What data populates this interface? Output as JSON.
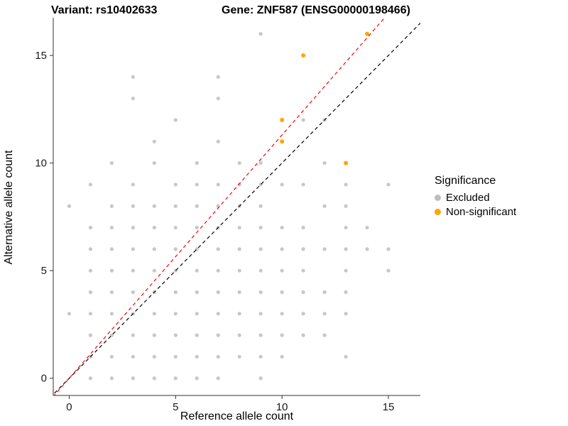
{
  "title_left": "Variant: rs10402633",
  "title_right": "Gene: ZNF587 (ENSG00000198466)",
  "chart_data": {
    "type": "scatter",
    "xlabel": "Reference allele count",
    "ylabel": "Alternative allele count",
    "x_ticks": [
      0,
      5,
      10,
      15
    ],
    "y_ticks": [
      0,
      5,
      10,
      15
    ],
    "xlim": [
      -0.75,
      16.5
    ],
    "ylim": [
      -0.8,
      16.75
    ],
    "grid": false,
    "series": [
      {
        "name": "Excluded",
        "color": "#bdbdbd",
        "radius": 2.6,
        "opacity": 0.85,
        "points": [
          [
            1,
            0
          ],
          [
            2,
            0
          ],
          [
            3,
            0
          ],
          [
            4,
            0
          ],
          [
            5,
            0
          ],
          [
            6,
            0
          ],
          [
            7,
            0
          ],
          [
            9,
            0
          ],
          [
            1,
            1
          ],
          [
            2,
            1
          ],
          [
            3,
            1
          ],
          [
            4,
            1
          ],
          [
            5,
            1
          ],
          [
            6,
            1
          ],
          [
            7,
            1
          ],
          [
            8,
            1
          ],
          [
            9,
            1
          ],
          [
            10,
            1
          ],
          [
            13,
            1
          ],
          [
            1,
            2
          ],
          [
            2,
            2
          ],
          [
            3,
            2
          ],
          [
            4,
            2
          ],
          [
            5,
            2
          ],
          [
            6,
            2
          ],
          [
            7,
            2
          ],
          [
            8,
            2
          ],
          [
            9,
            2
          ],
          [
            10,
            2
          ],
          [
            11,
            2
          ],
          [
            12,
            2
          ],
          [
            0,
            3
          ],
          [
            1,
            3
          ],
          [
            2,
            3
          ],
          [
            3,
            3
          ],
          [
            4,
            3
          ],
          [
            5,
            3
          ],
          [
            6,
            3
          ],
          [
            7,
            3
          ],
          [
            8,
            3
          ],
          [
            9,
            3
          ],
          [
            10,
            3
          ],
          [
            11,
            3
          ],
          [
            12,
            3
          ],
          [
            13,
            3
          ],
          [
            1,
            4
          ],
          [
            2,
            4
          ],
          [
            3,
            4
          ],
          [
            4,
            4
          ],
          [
            5,
            4
          ],
          [
            6,
            4
          ],
          [
            7,
            4
          ],
          [
            8,
            4
          ],
          [
            9,
            4
          ],
          [
            10,
            4
          ],
          [
            11,
            4
          ],
          [
            12,
            4
          ],
          [
            13,
            4
          ],
          [
            1,
            5
          ],
          [
            2,
            5
          ],
          [
            3,
            5
          ],
          [
            4,
            5
          ],
          [
            5,
            5
          ],
          [
            6,
            5
          ],
          [
            7,
            5
          ],
          [
            8,
            5
          ],
          [
            9,
            5
          ],
          [
            10,
            5
          ],
          [
            11,
            5
          ],
          [
            13,
            5
          ],
          [
            15,
            5
          ],
          [
            1,
            6
          ],
          [
            2,
            6
          ],
          [
            3,
            6
          ],
          [
            4,
            6
          ],
          [
            5,
            6
          ],
          [
            6,
            6
          ],
          [
            7,
            6
          ],
          [
            8,
            6
          ],
          [
            9,
            6
          ],
          [
            10,
            6
          ],
          [
            11,
            6
          ],
          [
            12,
            6
          ],
          [
            13,
            6
          ],
          [
            14,
            6
          ],
          [
            15,
            6
          ],
          [
            1,
            7
          ],
          [
            2,
            7
          ],
          [
            3,
            7
          ],
          [
            4,
            7
          ],
          [
            5,
            7
          ],
          [
            6,
            7
          ],
          [
            7,
            7
          ],
          [
            8,
            7
          ],
          [
            9,
            7
          ],
          [
            10,
            7
          ],
          [
            11,
            7
          ],
          [
            13,
            7
          ],
          [
            14,
            7
          ],
          [
            0,
            8
          ],
          [
            2,
            8
          ],
          [
            3,
            8
          ],
          [
            4,
            8
          ],
          [
            5,
            8
          ],
          [
            6,
            8
          ],
          [
            7,
            8
          ],
          [
            8,
            8
          ],
          [
            9,
            8
          ],
          [
            12,
            8
          ],
          [
            13,
            8
          ],
          [
            1,
            9
          ],
          [
            3,
            9
          ],
          [
            5,
            9
          ],
          [
            6,
            9
          ],
          [
            7,
            9
          ],
          [
            8,
            9
          ],
          [
            9,
            9
          ],
          [
            10,
            9
          ],
          [
            11,
            9
          ],
          [
            13,
            9
          ],
          [
            15,
            9
          ],
          [
            2,
            10
          ],
          [
            4,
            10
          ],
          [
            6,
            10
          ],
          [
            8,
            10
          ],
          [
            9,
            10
          ],
          [
            12,
            10
          ],
          [
            4,
            11
          ],
          [
            7,
            11
          ],
          [
            5,
            12
          ],
          [
            11,
            12
          ],
          [
            12,
            12
          ],
          [
            3,
            13
          ],
          [
            7,
            13
          ],
          [
            3,
            14
          ],
          [
            7,
            14
          ],
          [
            9,
            16
          ]
        ]
      },
      {
        "name": "Non-significant",
        "color": "#FFA500",
        "radius": 3,
        "opacity": 1,
        "points": [
          [
            10,
            11
          ],
          [
            10,
            12
          ],
          [
            11,
            15
          ],
          [
            13,
            10
          ],
          [
            14,
            16
          ]
        ]
      }
    ],
    "lines": [
      {
        "name": "identity-line",
        "color": "#000000",
        "dash": "5 4",
        "slope": 1,
        "intercept": 0
      },
      {
        "name": "fit-line",
        "color": "#FF0000",
        "dash": "5 4",
        "slope": 1.13,
        "intercept": 0
      }
    ],
    "legend": {
      "title": "Significance",
      "items": [
        {
          "label": "Excluded",
          "color": "#bdbdbd"
        },
        {
          "label": "Non-significant",
          "color": "#FFA500"
        }
      ]
    }
  }
}
